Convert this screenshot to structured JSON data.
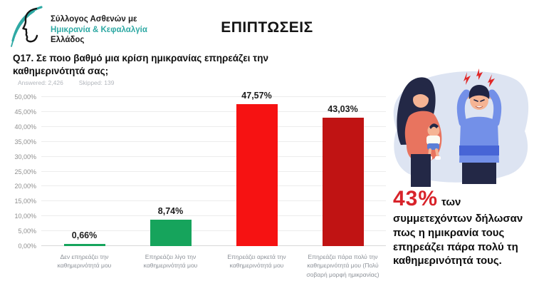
{
  "logo": {
    "line1": "Σύλλογος Ασθενών με",
    "line2": "Ημικρανία & Κεφαλαλγία",
    "line3": "Ελλάδος"
  },
  "header": {
    "title": "ΕΠΙΠΤΩΣΕΙΣ"
  },
  "question": {
    "text": "Q17. Σε ποιο βαθμό μια κρίση ημικρανίας επηρεάζει την καθημερινότητά σας;",
    "answered": "Answered: 2,426",
    "skipped": "Skipped: 139"
  },
  "chart_data": {
    "type": "bar",
    "categories": [
      "Δεν επηρεάζει την καθημερινότητά μου",
      "Επηρεάζει λίγο την καθημερινότητά μου",
      "Επηρεάζει αρκετά  την καθημερινότητά μου",
      "Επηρεάζει πάρα πολύ την καθημερινότητά μου (Πολύ σοβαρή μορφή ημικρανίας)"
    ],
    "values": [
      0.66,
      8.74,
      47.57,
      43.03
    ],
    "value_labels": [
      "0,66%",
      "8,74%",
      "47,57%",
      "43,03%"
    ],
    "bar_colors": [
      "#16a45c",
      "#16a45c",
      "#f61212",
      "#c01313"
    ],
    "title": "",
    "xlabel": "",
    "ylabel": "",
    "ylim": [
      0,
      50
    ],
    "ytick_values": [
      0,
      5,
      10,
      15,
      20,
      25,
      30,
      35,
      40,
      45,
      50
    ],
    "ytick_labels": [
      "0,00%",
      "5,00%",
      "10,00%",
      "15,00%",
      "20,00%",
      "25,00%",
      "30,00%",
      "35,00%",
      "40,00%",
      "45,00%",
      "50,00%"
    ],
    "grid": true,
    "legend": "none"
  },
  "callout": {
    "stat": "43%",
    "after_stat": "των",
    "body": "συμμετεχόντων δήλωσαν πως η ημικρανία τους επηρεάζει πάρα πολύ τη καθημερινότητά τους."
  },
  "colors": {
    "logo_teal": "#2fa9a4",
    "green_bar": "#16a45c",
    "red_bar": "#f61212",
    "dark_red_bar": "#c01313",
    "callout_red": "#d8232a",
    "illustration_bg": "#dde4f2"
  }
}
